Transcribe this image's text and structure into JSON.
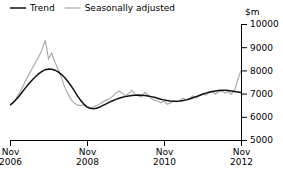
{
  "chart_data": {
    "type": "line",
    "y_label": "$m",
    "categories": [
      "Nov\n2006",
      null,
      null,
      null,
      null,
      null,
      null,
      null,
      null,
      null,
      null,
      null,
      null,
      null,
      null,
      null,
      null,
      null,
      null,
      null,
      null,
      null,
      null,
      null,
      "Nov\n2008",
      null,
      null,
      null,
      null,
      null,
      null,
      null,
      null,
      null,
      null,
      null,
      null,
      null,
      null,
      null,
      null,
      null,
      null,
      null,
      null,
      null,
      null,
      null,
      "Nov\n2010",
      null,
      null,
      null,
      null,
      null,
      null,
      null,
      null,
      null,
      null,
      null,
      null,
      null,
      null,
      null,
      null,
      null,
      null,
      null,
      null,
      null,
      null,
      null,
      "Nov\n2012"
    ],
    "series": [
      {
        "name": "Trend",
        "color": "#111111",
        "values": [
          6500,
          6620,
          6760,
          6920,
          7100,
          7280,
          7450,
          7600,
          7740,
          7860,
          7960,
          8030,
          8060,
          8050,
          8010,
          7940,
          7830,
          7690,
          7530,
          7340,
          7130,
          6910,
          6710,
          6550,
          6430,
          6370,
          6350,
          6370,
          6420,
          6490,
          6560,
          6630,
          6690,
          6750,
          6800,
          6840,
          6870,
          6900,
          6920,
          6930,
          6940,
          6930,
          6920,
          6900,
          6870,
          6840,
          6800,
          6760,
          6730,
          6700,
          6680,
          6670,
          6670,
          6680,
          6700,
          6730,
          6770,
          6820,
          6870,
          6920,
          6970,
          7020,
          7060,
          7090,
          7110,
          7130,
          7140,
          7140,
          7130,
          7110,
          7090,
          7070,
          7050
        ]
      },
      {
        "name": "Seasonally adjusted",
        "color": "#aaaaaa",
        "values": [
          6480,
          6600,
          6820,
          7050,
          7300,
          7600,
          7850,
          8100,
          8350,
          8600,
          8900,
          9300,
          8500,
          8750,
          8350,
          8050,
          7700,
          7300,
          7000,
          6750,
          6600,
          6500,
          6480,
          6520,
          6400,
          6380,
          6420,
          6480,
          6550,
          6650,
          6720,
          6780,
          6880,
          7020,
          7100,
          7020,
          6900,
          7000,
          7150,
          6950,
          6900,
          6860,
          7050,
          6950,
          6800,
          6720,
          6680,
          6600,
          6680,
          6540,
          6600,
          6680,
          6640,
          6700,
          6800,
          6730,
          6800,
          6900,
          6810,
          6900,
          7000,
          6940,
          7040,
          7080,
          6980,
          7080,
          7120,
          7020,
          7080,
          6980,
          7150,
          7600,
          8000
        ]
      }
    ],
    "ylim": [
      5000,
      10000
    ],
    "yticks": [
      5000,
      6000,
      7000,
      8000,
      9000,
      10000
    ],
    "grid": false,
    "legend": "upper left"
  }
}
